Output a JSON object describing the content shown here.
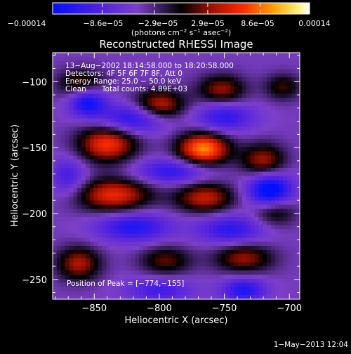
{
  "chart_data": {
    "type": "heatmap",
    "title": "Reconstructed RHESSI Image",
    "xlabel": "Heliocentric X (arcsec)",
    "ylabel": "Heliocentric Y (arcsec)",
    "xlim": [
      -882,
      -692
    ],
    "ylim": [
      -265,
      -78
    ],
    "x_ticks": [
      -850,
      -800,
      -750,
      -700
    ],
    "x_tick_labels": [
      "−850",
      "−800",
      "−750",
      "−700"
    ],
    "y_ticks": [
      -100,
      -150,
      -200,
      -250
    ],
    "y_tick_labels": [
      "−100",
      "−150",
      "−200",
      "−250"
    ],
    "colorbar": {
      "min": -0.00014,
      "max": 0.00014,
      "ticks": [
        -0.00014,
        -8.6e-05,
        -2.9e-05,
        2.9e-05,
        8.6e-05,
        0.00014
      ],
      "tick_labels": [
        "−0.00014",
        "−8.6e−05",
        "−2.9e−05",
        "2.9e−05",
        "8.6e−05",
        "0.00014"
      ],
      "units_pre": "(photons cm",
      "units_e1": "−2",
      "units_mid1": " s",
      "units_e2": "−1",
      "units_mid2": " asec",
      "units_e3": "−2",
      "units_post": ")"
    },
    "annotations": {
      "time_range": "13−Aug−2002 18:14:58.000 to 18:20:58.000",
      "detectors": "Detectors: 4F 5F 6F 7F 8F, Att 0",
      "energy": "Energy Range: 25.0 − 50.0 keV",
      "clean": "Clean",
      "total_counts": "Total counts: 4.89E+03",
      "peak": "Position of Peak = [−774,−155]"
    },
    "footer_date": "1−May−2013 12:04",
    "peak_position": [
      -774,
      -155
    ],
    "grid": false,
    "sources": [
      {
        "x": -766,
        "y": -151,
        "amp": 1.0,
        "sx": 14,
        "sy": 9
      },
      {
        "x": -840,
        "y": -147,
        "amp": 0.8,
        "sx": 16,
        "sy": 10
      },
      {
        "x": -720,
        "y": -160,
        "amp": 0.6,
        "sx": 12,
        "sy": 9
      },
      {
        "x": -800,
        "y": -118,
        "amp": 0.7,
        "sx": 14,
        "sy": 8
      },
      {
        "x": -752,
        "y": -106,
        "amp": 0.55,
        "sx": 13,
        "sy": 8
      },
      {
        "x": -860,
        "y": -102,
        "amp": 0.5,
        "sx": 13,
        "sy": 8
      },
      {
        "x": -705,
        "y": -104,
        "amp": 0.4,
        "sx": 10,
        "sy": 7
      },
      {
        "x": -835,
        "y": -186,
        "amp": 0.75,
        "sx": 20,
        "sy": 9
      },
      {
        "x": -765,
        "y": -188,
        "amp": 0.65,
        "sx": 16,
        "sy": 8
      },
      {
        "x": -712,
        "y": -198,
        "amp": 0.5,
        "sx": 12,
        "sy": 8
      },
      {
        "x": -862,
        "y": -238,
        "amp": 0.6,
        "sx": 12,
        "sy": 9
      },
      {
        "x": -795,
        "y": -236,
        "amp": 0.45,
        "sx": 14,
        "sy": 8
      },
      {
        "x": -735,
        "y": -234,
        "amp": 0.55,
        "sx": 16,
        "sy": 8
      },
      {
        "x": -820,
        "y": -128,
        "amp": -0.6,
        "sx": 18,
        "sy": 8
      },
      {
        "x": -750,
        "y": -127,
        "amp": -0.5,
        "sx": 16,
        "sy": 8
      },
      {
        "x": -855,
        "y": -115,
        "amp": -0.7,
        "sx": 10,
        "sy": 8
      },
      {
        "x": -715,
        "y": -183,
        "amp": -0.85,
        "sx": 12,
        "sy": 10
      },
      {
        "x": -790,
        "y": -168,
        "amp": -0.5,
        "sx": 20,
        "sy": 7
      },
      {
        "x": -820,
        "y": -210,
        "amp": -0.55,
        "sx": 20,
        "sy": 8
      },
      {
        "x": -745,
        "y": -212,
        "amp": -0.5,
        "sx": 18,
        "sy": 8
      },
      {
        "x": -800,
        "y": -258,
        "amp": -0.4,
        "sx": 18,
        "sy": 7
      },
      {
        "x": -735,
        "y": -258,
        "amp": -0.55,
        "sx": 12,
        "sy": 7
      },
      {
        "x": -870,
        "y": -172,
        "amp": -0.4,
        "sx": 10,
        "sy": 10
      }
    ]
  }
}
